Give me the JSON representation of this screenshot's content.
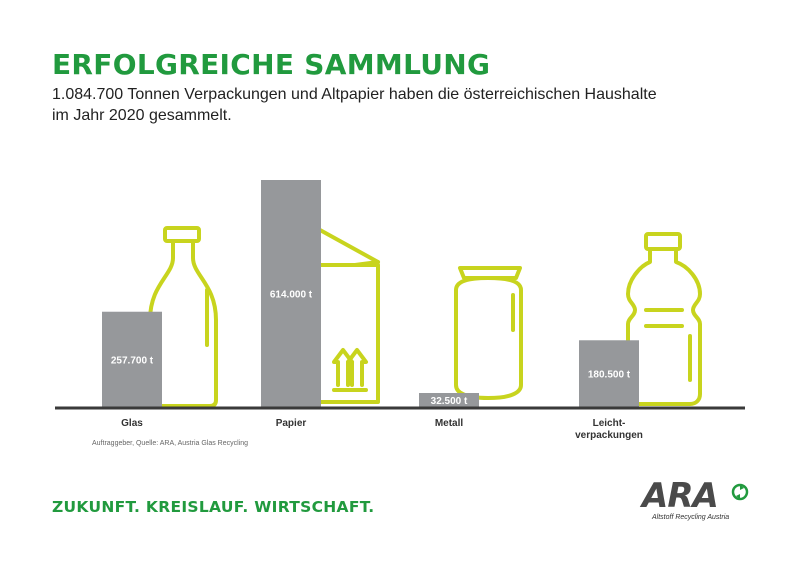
{
  "header": {
    "title": "ERFOLGREICHE SAMMLUNG",
    "subtitle": "1.084.700 Tonnen Verpackungen und Altpapier haben die österreichischen Haushalte im Jahr 2020 gesammelt."
  },
  "chart_data": {
    "type": "bar",
    "categories": [
      "Glas",
      "Papier",
      "Metall",
      "Leicht-\nverpackungen"
    ],
    "values": [
      257700,
      614000,
      32500,
      180500
    ],
    "data_labels": [
      "257.700 t",
      "614.000 t",
      "32.500 t",
      "180.500 t"
    ],
    "icons": [
      "bottle-icon",
      "box-icon",
      "can-icon",
      "plastic-bottle-icon"
    ],
    "unit": "t",
    "ylim": [
      0,
      614000
    ],
    "grid": false,
    "colors": {
      "bar": "#96989b",
      "outline": "#c8d41e",
      "baseline": "#3a3a3a",
      "label_text": "#ffffff"
    }
  },
  "footer": {
    "source": "Auftraggeber, Quelle: ARA, Austria Glas Recycling",
    "slogan": "ZUKUNFT. KREISLAUF. WIRTSCHAFT."
  },
  "logo": {
    "name": "ARA",
    "subtitle": "Altstoff Recycling Austria",
    "colors": {
      "text": "#4a4a4a",
      "mark": "#219a3e"
    }
  }
}
